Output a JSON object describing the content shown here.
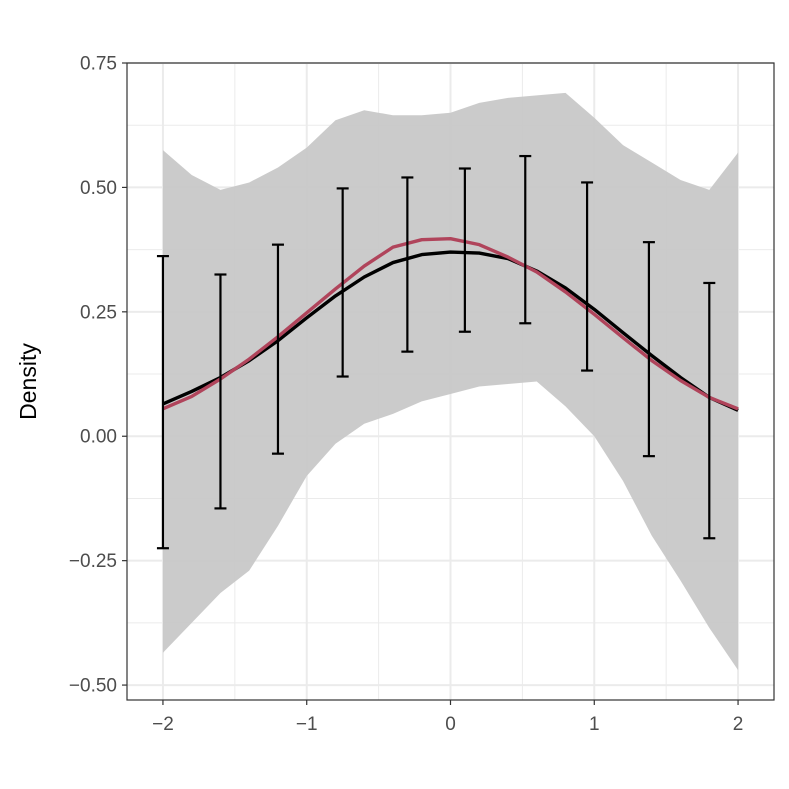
{
  "chart_data": {
    "type": "line",
    "title": "",
    "xlabel": "",
    "ylabel": "Density",
    "xlim": [
      -2.25,
      2.25
    ],
    "ylim": [
      -0.53,
      0.75
    ],
    "x_ticks": [
      -2,
      -1,
      0,
      1,
      2
    ],
    "x_tick_labels": [
      "−2",
      "−1",
      "0",
      "1",
      "2"
    ],
    "y_ticks": [
      -0.5,
      -0.25,
      0.0,
      0.25,
      0.5,
      0.75
    ],
    "y_tick_labels": [
      "−0.50",
      "−0.25",
      "0.00",
      "0.25",
      "0.50",
      "0.75"
    ],
    "grid": true,
    "legend": "none",
    "colors": {
      "band": "#c8c8c8",
      "mean_line": "#000000",
      "density_line": "#b0445b",
      "errorbar": "#000000",
      "grid": "#ebebeb",
      "panel_border": "#333333"
    },
    "band": {
      "x": [
        -2.0,
        -1.8,
        -1.6,
        -1.4,
        -1.2,
        -1.0,
        -0.8,
        -0.6,
        -0.4,
        -0.2,
        0.0,
        0.2,
        0.4,
        0.6,
        0.8,
        1.0,
        1.2,
        1.4,
        1.6,
        1.8,
        2.0
      ],
      "upper": [
        0.575,
        0.525,
        0.495,
        0.51,
        0.54,
        0.58,
        0.635,
        0.655,
        0.645,
        0.645,
        0.65,
        0.67,
        0.68,
        0.685,
        0.69,
        0.64,
        0.585,
        0.55,
        0.515,
        0.495,
        0.57
      ],
      "lower": [
        -0.435,
        -0.375,
        -0.315,
        -0.27,
        -0.18,
        -0.08,
        -0.015,
        0.025,
        0.045,
        0.07,
        0.085,
        0.1,
        0.105,
        0.11,
        0.06,
        0.0,
        -0.09,
        -0.2,
        -0.29,
        -0.385,
        -0.47
      ]
    },
    "series": [
      {
        "x": [
          -2.0,
          -1.8,
          -1.6,
          -1.4,
          -1.2,
          -1.0,
          -0.8,
          -0.6,
          -0.4,
          -0.2,
          0.0,
          0.2,
          0.4,
          0.6,
          0.8,
          1.0,
          1.2,
          1.4,
          1.6,
          1.8,
          2.0
        ],
        "values": [
          0.065,
          0.09,
          0.118,
          0.152,
          0.192,
          0.238,
          0.282,
          0.32,
          0.349,
          0.365,
          0.37,
          0.368,
          0.357,
          0.332,
          0.298,
          0.255,
          0.208,
          0.162,
          0.118,
          0.078,
          0.052
        ]
      },
      {
        "x": [
          -2.0,
          -1.8,
          -1.6,
          -1.4,
          -1.2,
          -1.0,
          -0.8,
          -0.6,
          -0.4,
          -0.2,
          0.0,
          0.2,
          0.4,
          0.6,
          0.8,
          1.0,
          1.2,
          1.4,
          1.6,
          1.8,
          2.0
        ],
        "values": [
          0.055,
          0.08,
          0.115,
          0.155,
          0.2,
          0.248,
          0.296,
          0.342,
          0.38,
          0.395,
          0.397,
          0.385,
          0.36,
          0.33,
          0.29,
          0.245,
          0.198,
          0.152,
          0.112,
          0.078,
          0.055
        ]
      }
    ],
    "errorbars": [
      {
        "x": -2.0,
        "lower": -0.225,
        "upper": 0.362
      },
      {
        "x": -1.6,
        "lower": -0.145,
        "upper": 0.325
      },
      {
        "x": -1.2,
        "lower": -0.035,
        "upper": 0.385
      },
      {
        "x": -0.75,
        "lower": 0.12,
        "upper": 0.498
      },
      {
        "x": -0.3,
        "lower": 0.17,
        "upper": 0.52
      },
      {
        "x": 0.1,
        "lower": 0.21,
        "upper": 0.538
      },
      {
        "x": 0.52,
        "lower": 0.227,
        "upper": 0.563
      },
      {
        "x": 0.95,
        "lower": 0.132,
        "upper": 0.51
      },
      {
        "x": 1.38,
        "lower": -0.04,
        "upper": 0.39
      },
      {
        "x": 1.8,
        "lower": -0.205,
        "upper": 0.308
      }
    ]
  }
}
